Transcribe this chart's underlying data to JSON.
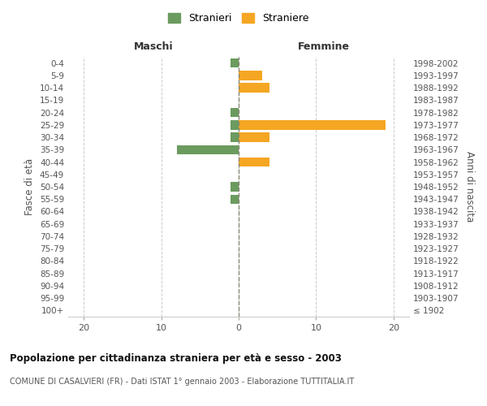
{
  "age_groups": [
    "100+",
    "95-99",
    "90-94",
    "85-89",
    "80-84",
    "75-79",
    "70-74",
    "65-69",
    "60-64",
    "55-59",
    "50-54",
    "45-49",
    "40-44",
    "35-39",
    "30-34",
    "25-29",
    "20-24",
    "15-19",
    "10-14",
    "5-9",
    "0-4"
  ],
  "birth_years": [
    "≤ 1902",
    "1903-1907",
    "1908-1912",
    "1913-1917",
    "1918-1922",
    "1923-1927",
    "1928-1932",
    "1933-1937",
    "1938-1942",
    "1943-1947",
    "1948-1952",
    "1953-1957",
    "1958-1962",
    "1963-1967",
    "1968-1972",
    "1973-1977",
    "1978-1982",
    "1983-1987",
    "1988-1992",
    "1993-1997",
    "1998-2002"
  ],
  "males": [
    0,
    0,
    0,
    0,
    0,
    0,
    0,
    0,
    0,
    -1,
    -1,
    0,
    0,
    -8,
    -1,
    -1,
    -1,
    0,
    0,
    0,
    -1
  ],
  "females": [
    0,
    0,
    0,
    0,
    0,
    0,
    0,
    0,
    0,
    0,
    0,
    0,
    4,
    0,
    4,
    19,
    0,
    0,
    4,
    3,
    0
  ],
  "male_color": "#6b9b5e",
  "female_color": "#f5a623",
  "title": "Popolazione per cittadinanza straniera per età e sesso - 2003",
  "subtitle": "COMUNE DI CASALVIERI (FR) - Dati ISTAT 1° gennaio 2003 - Elaborazione TUTTITALIA.IT",
  "ylabel_left": "Fasce di età",
  "ylabel_right": "Anni di nascita",
  "xlabel_left": "Maschi",
  "xlabel_right": "Femmine",
  "legend_male": "Stranieri",
  "legend_female": "Straniere",
  "xlim": [
    -22,
    22
  ],
  "xticks": [
    -20,
    -10,
    0,
    10,
    20
  ],
  "xtick_labels": [
    "20",
    "10",
    "0",
    "10",
    "20"
  ],
  "bg_color": "#ffffff",
  "grid_color": "#cccccc",
  "bar_height": 0.75
}
